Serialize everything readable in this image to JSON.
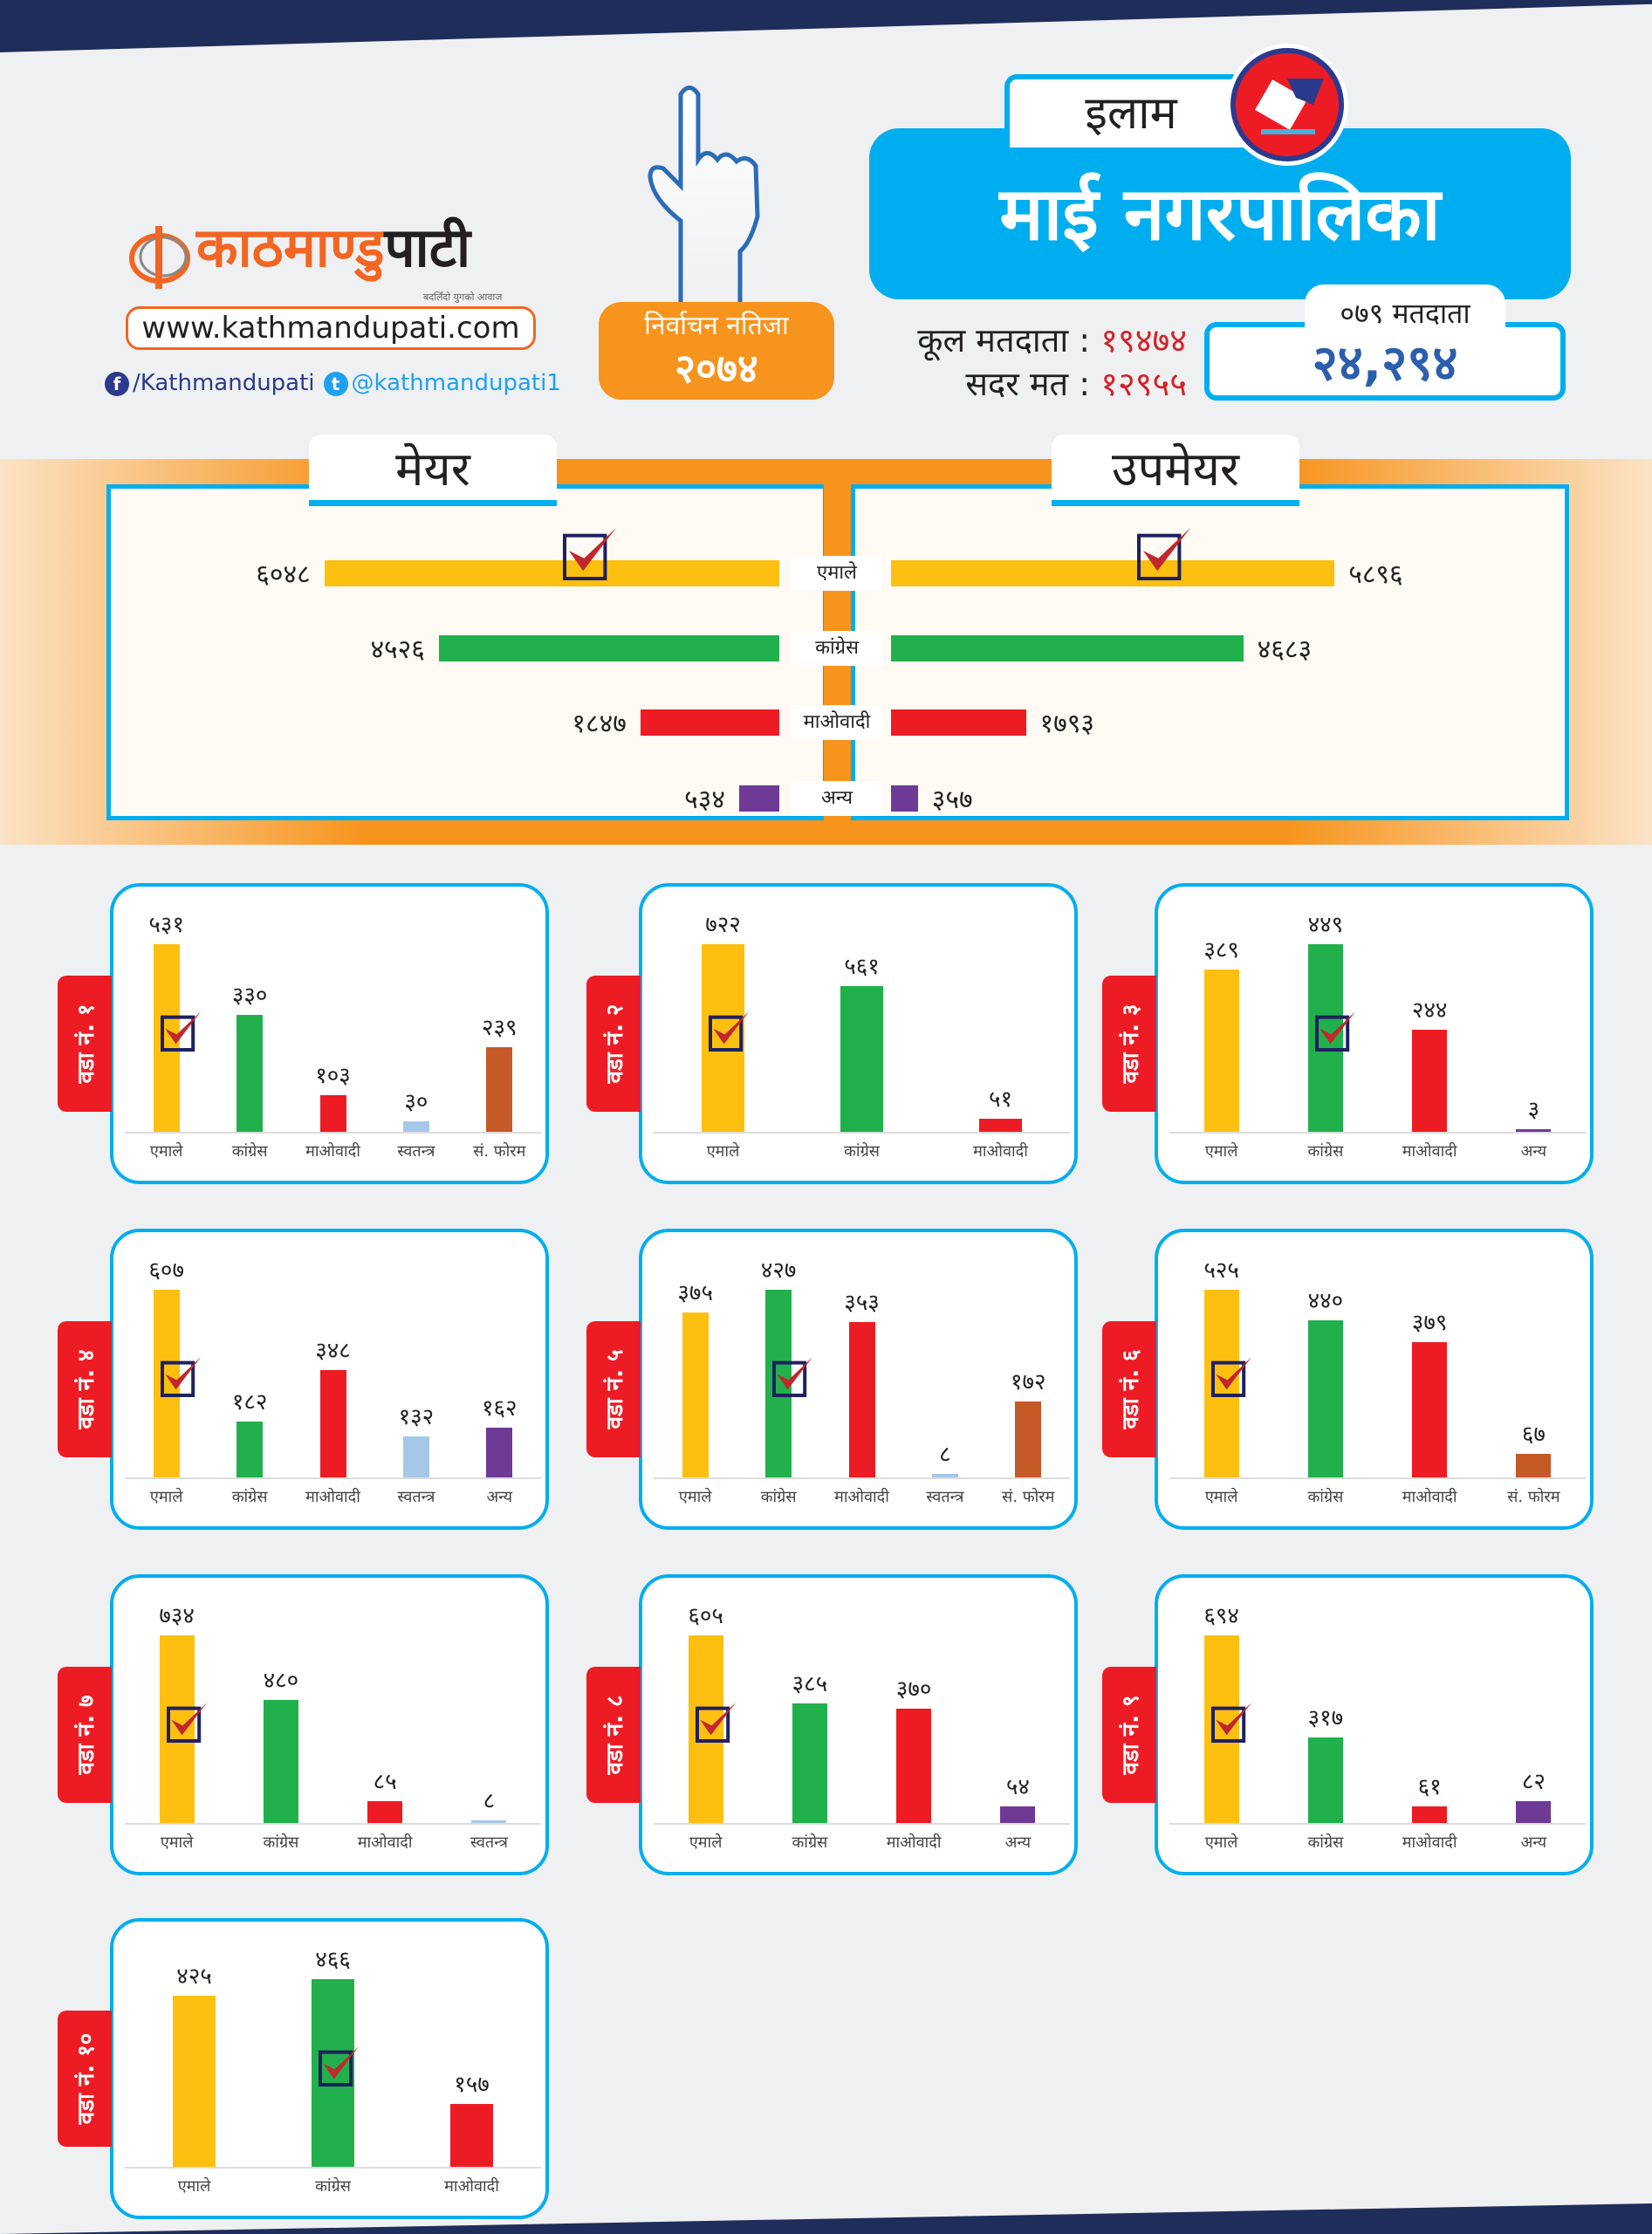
{
  "header": {
    "logo_text_orange": "काठमाण्डु",
    "logo_text_dark": "पाटी",
    "logo_tagline": "बदलिँदो युगको आवाज",
    "website": "www.kathmandupati.com",
    "facebook": "/Kathmandupati",
    "twitter": "@kathmandupati1",
    "badge_line1": "निर्वाचन नतिजा",
    "badge_line2": "२०७४",
    "district": "इलाम",
    "municipality": "माई नगरपालिका",
    "total_voters_label": "कूल मतदाता",
    "total_voters": "१९४७४",
    "valid_votes_label": "सदर मत",
    "valid_votes": "१२९५५",
    "voters_079_label": "०७९ मतदाता",
    "voters_079": "२४,२९४"
  },
  "colors": {
    "एमाले": "#fdc010",
    "कांग्रेस": "#21b04b",
    "माओवादी": "#ed1c24",
    "स्वतन्त्र": "#a6c8e8",
    "सं. फोरम": "#c55a28",
    "अन्य": "#6f3996",
    "accent": "#00aeef",
    "orange": "#f7941d"
  },
  "mayor_section": {
    "mayor_title": "मेयर",
    "deputy_title": "उपमेयर",
    "rows": [
      {
        "party": "एमाले",
        "mayor": 6048,
        "mayor_label": "६०४८",
        "deputy": 5896,
        "deputy_label": "५८९६",
        "winner": true
      },
      {
        "party": "कांग्रेस",
        "mayor": 4526,
        "mayor_label": "४५२६",
        "deputy": 4683,
        "deputy_label": "४६८३",
        "winner": false
      },
      {
        "party": "माओवादी",
        "mayor": 1847,
        "mayor_label": "१८४७",
        "deputy": 1793,
        "deputy_label": "१७९३",
        "winner": false
      },
      {
        "party": "अन्य",
        "mayor": 534,
        "mayor_label": "५३४",
        "deputy": 357,
        "deputy_label": "३५७",
        "winner": false
      }
    ]
  },
  "chart_data": [
    {
      "type": "bar",
      "title": "वडा नं. १",
      "categories": [
        "एमाले",
        "कांग्रेस",
        "माओवादी",
        "स्वतन्त्र",
        "सं. फोरम"
      ],
      "values": [
        531,
        330,
        103,
        30,
        239
      ],
      "labels": [
        "५३१",
        "३३०",
        "१०३",
        "३०",
        "२३९"
      ],
      "winner": 0
    },
    {
      "type": "bar",
      "title": "वडा नं. २",
      "categories": [
        "एमाले",
        "कांग्रेस",
        "माओवादी"
      ],
      "values": [
        722,
        561,
        51
      ],
      "labels": [
        "७२२",
        "५६१",
        "५१"
      ],
      "winner": 0
    },
    {
      "type": "bar",
      "title": "वडा नं. ३",
      "categories": [
        "एमाले",
        "कांग्रेस",
        "माओवादी",
        "अन्य"
      ],
      "values": [
        389,
        449,
        244,
        3
      ],
      "labels": [
        "३८९",
        "४४९",
        "२४४",
        "३"
      ],
      "winner": 1
    },
    {
      "type": "bar",
      "title": "वडा नं. ४",
      "categories": [
        "एमाले",
        "कांग्रेस",
        "माओवादी",
        "स्वतन्त्र",
        "अन्य"
      ],
      "values": [
        607,
        182,
        348,
        132,
        162
      ],
      "labels": [
        "६०७",
        "१८२",
        "३४८",
        "१३२",
        "१६२"
      ],
      "winner": 0
    },
    {
      "type": "bar",
      "title": "वडा नं. ५",
      "categories": [
        "एमाले",
        "कांग्रेस",
        "माओवादी",
        "स्वतन्त्र",
        "सं. फोरम"
      ],
      "values": [
        375,
        427,
        353,
        8,
        172
      ],
      "labels": [
        "३७५",
        "४२७",
        "३५३",
        "८",
        "१७२"
      ],
      "winner": 1
    },
    {
      "type": "bar",
      "title": "वडा नं. ६",
      "categories": [
        "एमाले",
        "कांग्रेस",
        "माओवादी",
        "सं. फोरम"
      ],
      "values": [
        525,
        440,
        379,
        67
      ],
      "labels": [
        "५२५",
        "४४०",
        "३७९",
        "६७"
      ],
      "winner": 0
    },
    {
      "type": "bar",
      "title": "वडा नं. ७",
      "categories": [
        "एमाले",
        "कांग्रेस",
        "माओवादी",
        "स्वतन्त्र"
      ],
      "values": [
        734,
        480,
        85,
        8
      ],
      "labels": [
        "७३४",
        "४८०",
        "८५",
        "८"
      ],
      "winner": 0
    },
    {
      "type": "bar",
      "title": "वडा नं. ८",
      "categories": [
        "एमाले",
        "कांग्रेस",
        "माओवादी",
        "अन्य"
      ],
      "values": [
        605,
        385,
        370,
        54
      ],
      "labels": [
        "६०५",
        "३८५",
        "३७०",
        "५४"
      ],
      "winner": 0
    },
    {
      "type": "bar",
      "title": "वडा नं. ९",
      "categories": [
        "एमाले",
        "कांग्रेस",
        "माओवादी",
        "अन्य"
      ],
      "values": [
        694,
        317,
        61,
        82
      ],
      "labels": [
        "६९४",
        "३१७",
        "६१",
        "८२"
      ],
      "winner": 0
    },
    {
      "type": "bar",
      "title": "वडा नं. १०",
      "categories": [
        "एमाले",
        "कांग्रेस",
        "माओवादी"
      ],
      "values": [
        425,
        466,
        157
      ],
      "labels": [
        "४२५",
        "४६६",
        "१५७"
      ],
      "winner": 1
    }
  ]
}
